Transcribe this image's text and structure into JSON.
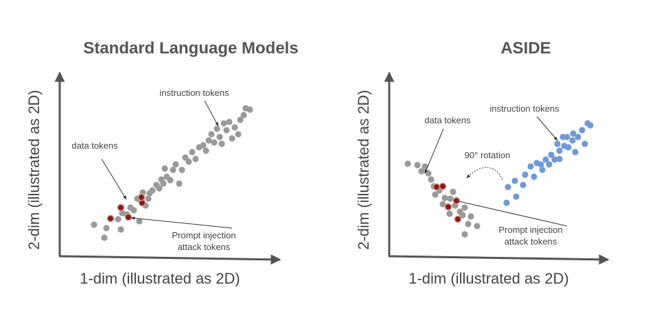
{
  "left_panel": {
    "title": "Standard Language Models",
    "x_axis_label": "1-dim (illustrated as 2D)",
    "y_axis_label": "2-dim (illustrated as 2D)",
    "instruction_label": "instruction tokens",
    "data_label": "data tokens",
    "attack_label": [
      "Prompt injection",
      "attack tokens"
    ]
  },
  "right_panel": {
    "title": "ASIDE",
    "x_axis_label": "1-dim (illustrated as 2D)",
    "y_axis_label": "2-dim (illustrated as 2D)",
    "instruction_label": "instruction tokens",
    "data_label": "data tokens",
    "rotation_label": "90° rotation",
    "attack_label": [
      "Prompt injection",
      "attack tokens"
    ]
  }
}
